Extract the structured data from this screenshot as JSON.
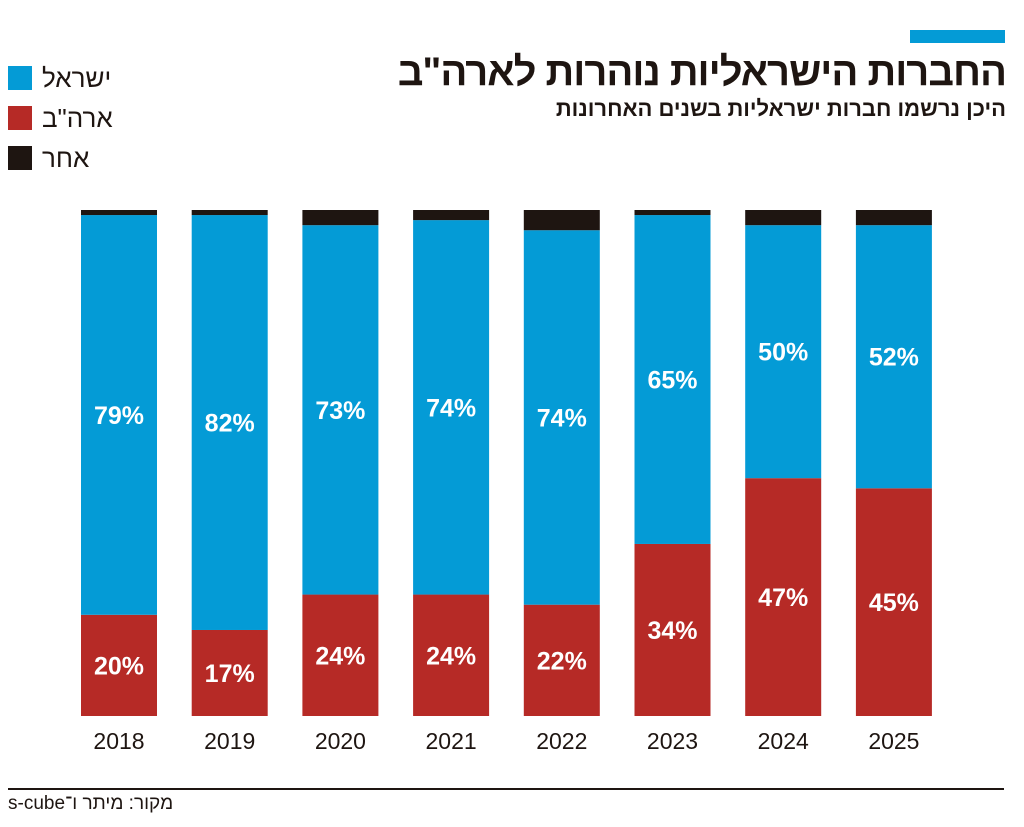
{
  "title": "החברות הישראליות נוהרות לארה\"ב",
  "subtitle": "היכן נרשמו חברות ישראליות בשנים האחרונות",
  "source": "מקור: מיתר ו־s-cube",
  "colors": {
    "accent": "#049bd6",
    "israel": "#049bd6",
    "usa": "#b62a26",
    "other": "#1e1511"
  },
  "legend": [
    {
      "label": "ישראל",
      "color": "#049bd6"
    },
    {
      "label": "ארה\"ב",
      "color": "#b62a26"
    },
    {
      "label": "אחר",
      "color": "#1e1511"
    }
  ],
  "chart_data": {
    "type": "bar",
    "stacked": true,
    "title": "החברות הישראליות נוהרות לארה\"ב",
    "subtitle": "היכן נרשמו חברות ישראליות בשנים האחרונות",
    "categories": [
      "2018",
      "2019",
      "2020",
      "2021",
      "2022",
      "2023",
      "2024",
      "2025"
    ],
    "ylim": [
      0,
      100
    ],
    "grid": false,
    "legend_position": "top-left",
    "series": [
      {
        "name": "ארה\"ב",
        "color": "#b62a26",
        "values": [
          20,
          17,
          24,
          24,
          22,
          34,
          47,
          45
        ],
        "labels": [
          "20%",
          "17%",
          "24%",
          "24%",
          "22%",
          "34%",
          "47%",
          "45%"
        ]
      },
      {
        "name": "ישראל",
        "color": "#049bd6",
        "values": [
          79,
          82,
          73,
          74,
          74,
          65,
          50,
          52
        ],
        "labels": [
          "79%",
          "82%",
          "73%",
          "74%",
          "74%",
          "65%",
          "50%",
          "52%"
        ]
      },
      {
        "name": "אחר",
        "color": "#1e1511",
        "values": [
          1,
          1,
          3,
          2,
          4,
          1,
          3,
          3
        ]
      }
    ]
  }
}
